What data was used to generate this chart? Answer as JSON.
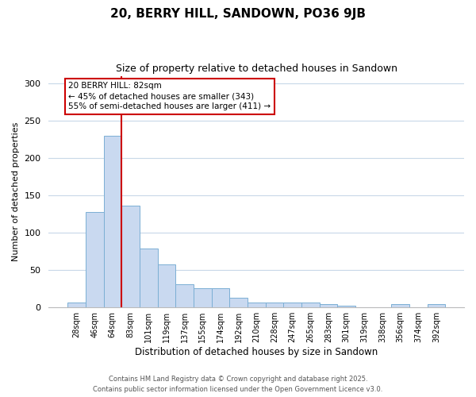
{
  "title": "20, BERRY HILL, SANDOWN, PO36 9JB",
  "subtitle": "Size of property relative to detached houses in Sandown",
  "xlabel": "Distribution of detached houses by size in Sandown",
  "ylabel": "Number of detached properties",
  "bar_heights": [
    7,
    128,
    230,
    136,
    79,
    58,
    31,
    26,
    26,
    13,
    7,
    7,
    7,
    7,
    5,
    2,
    0,
    0,
    5,
    0,
    5
  ],
  "bin_labels": [
    "28sqm",
    "46sqm",
    "64sqm",
    "83sqm",
    "101sqm",
    "119sqm",
    "137sqm",
    "155sqm",
    "174sqm",
    "192sqm",
    "210sqm",
    "228sqm",
    "247sqm",
    "265sqm",
    "283sqm",
    "301sqm",
    "319sqm",
    "338sqm",
    "356sqm",
    "374sqm",
    "392sqm"
  ],
  "bar_color": "#c9d9f0",
  "bar_edge_color": "#7bafd4",
  "vline_x_index": 3,
  "vline_color": "#cc0000",
  "annotation_text": "20 BERRY HILL: 82sqm\n← 45% of detached houses are smaller (343)\n55% of semi-detached houses are larger (411) →",
  "annotation_box_color": "#ffffff",
  "annotation_edge_color": "#cc0000",
  "ylim": [
    0,
    310
  ],
  "yticks": [
    0,
    50,
    100,
    150,
    200,
    250,
    300
  ],
  "footer_line1": "Contains HM Land Registry data © Crown copyright and database right 2025.",
  "footer_line2": "Contains public sector information licensed under the Open Government Licence v3.0.",
  "background_color": "#ffffff",
  "grid_color": "#c8d8e8"
}
